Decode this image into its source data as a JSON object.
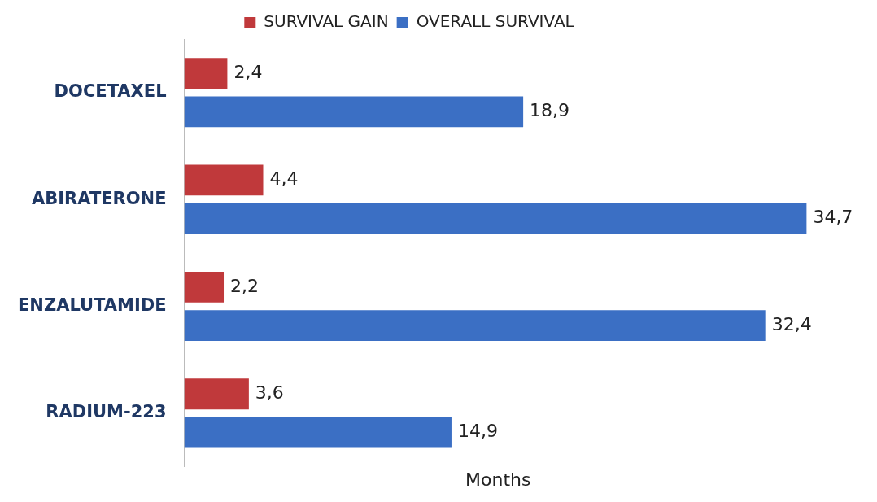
{
  "chart_data": {
    "type": "bar",
    "orientation": "horizontal",
    "xlabel": "Months",
    "categories": [
      "DOCETAXEL",
      "ABIRATERONE",
      "ENZALUTAMIDE",
      "RADIUM-223"
    ],
    "series": [
      {
        "name": "SURVIVAL GAIN",
        "color": "#c0393b",
        "values": [
          2.4,
          4.4,
          2.2,
          3.6
        ],
        "value_labels": [
          "2,4",
          "4,4",
          "2,2",
          "3,6"
        ]
      },
      {
        "name": "OVERALL SURVIVAL",
        "color": "#3b6fc4",
        "values": [
          18.9,
          34.7,
          32.4,
          14.9
        ],
        "value_labels": [
          "18,9",
          "34,7",
          "32,4",
          "14,9"
        ]
      }
    ],
    "legend": "top",
    "grid": false,
    "tick_labels": "y"
  }
}
